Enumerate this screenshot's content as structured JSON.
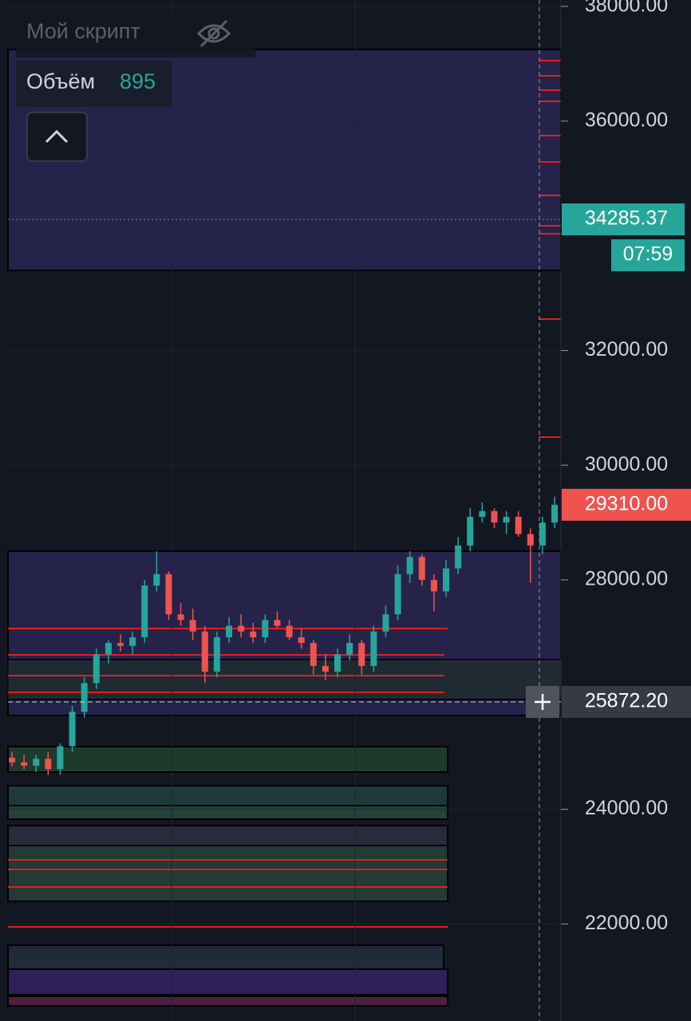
{
  "chart_data": {
    "type": "candlestick",
    "legend": {
      "script": "Мой скрипт",
      "volume_label": "Объём",
      "volume_value": "895"
    },
    "open": [
      24900,
      24820,
      24760,
      24880,
      24700,
      25100,
      25700,
      26200,
      26700,
      26900,
      26850,
      27000,
      27900,
      28100,
      27400,
      27300,
      27100,
      26400,
      27000,
      27200,
      27100,
      27000,
      27300,
      27200,
      27000,
      26900,
      26500,
      26400,
      26700,
      26900,
      26500,
      27100,
      27400,
      28100,
      28400,
      28000,
      27800,
      28200,
      28600,
      29100,
      29200,
      29000,
      29100,
      28800,
      28600,
      29000
    ],
    "high": [
      25000,
      24950,
      24950,
      25000,
      25150,
      25800,
      26300,
      26800,
      26950,
      27050,
      27100,
      28000,
      28500,
      28150,
      27600,
      27500,
      27200,
      27100,
      27350,
      27400,
      27250,
      27400,
      27450,
      27300,
      27150,
      26950,
      26700,
      26800,
      27050,
      26950,
      27200,
      27550,
      28250,
      28500,
      28450,
      28100,
      28350,
      28750,
      29250,
      29350,
      29250,
      29200,
      29200,
      28900,
      29100,
      29450
    ],
    "low": [
      24750,
      24700,
      24650,
      24600,
      24600,
      25000,
      25600,
      26100,
      26550,
      26750,
      26700,
      26900,
      27800,
      27300,
      27200,
      26950,
      26200,
      26300,
      26900,
      27000,
      26900,
      26900,
      27150,
      26950,
      26800,
      26350,
      26250,
      26300,
      26600,
      26350,
      26400,
      27000,
      27300,
      27950,
      27900,
      27450,
      27700,
      28100,
      28500,
      29000,
      28900,
      28800,
      28750,
      27950,
      28450,
      28900
    ],
    "close": [
      24820,
      24760,
      24880,
      24700,
      25100,
      25700,
      26200,
      26700,
      26900,
      26850,
      27000,
      27900,
      28100,
      27400,
      27300,
      27100,
      26400,
      27000,
      27200,
      27100,
      27000,
      27300,
      27200,
      27000,
      26900,
      26500,
      26400,
      26700,
      26900,
      26500,
      27100,
      27400,
      28100,
      28400,
      28000,
      27800,
      28200,
      28600,
      29100,
      29200,
      29000,
      29100,
      28800,
      28600,
      29000,
      29310
    ],
    "up_color": "#26a69a",
    "down_color": "#ef5350",
    "ylim": [
      20309,
      38111
    ],
    "yticks": [
      {
        "value": 38000,
        "label": "38000.00"
      },
      {
        "value": 36000,
        "label": "36000.00"
      },
      {
        "value": 32000,
        "label": "32000.00"
      },
      {
        "value": 30000,
        "label": "30000.00"
      },
      {
        "value": 28000,
        "label": "28000.00"
      },
      {
        "value": 24000,
        "label": "24000.00"
      },
      {
        "value": 22000,
        "label": "22000.00"
      }
    ],
    "grid": true,
    "mark_price": {
      "value": 34285.37,
      "label": "34285.37",
      "countdown": "07:59"
    },
    "last_price": {
      "value": 29310,
      "label": "29310.00"
    },
    "crosshair": {
      "value": 25872.2,
      "label": "25872.20"
    }
  }
}
